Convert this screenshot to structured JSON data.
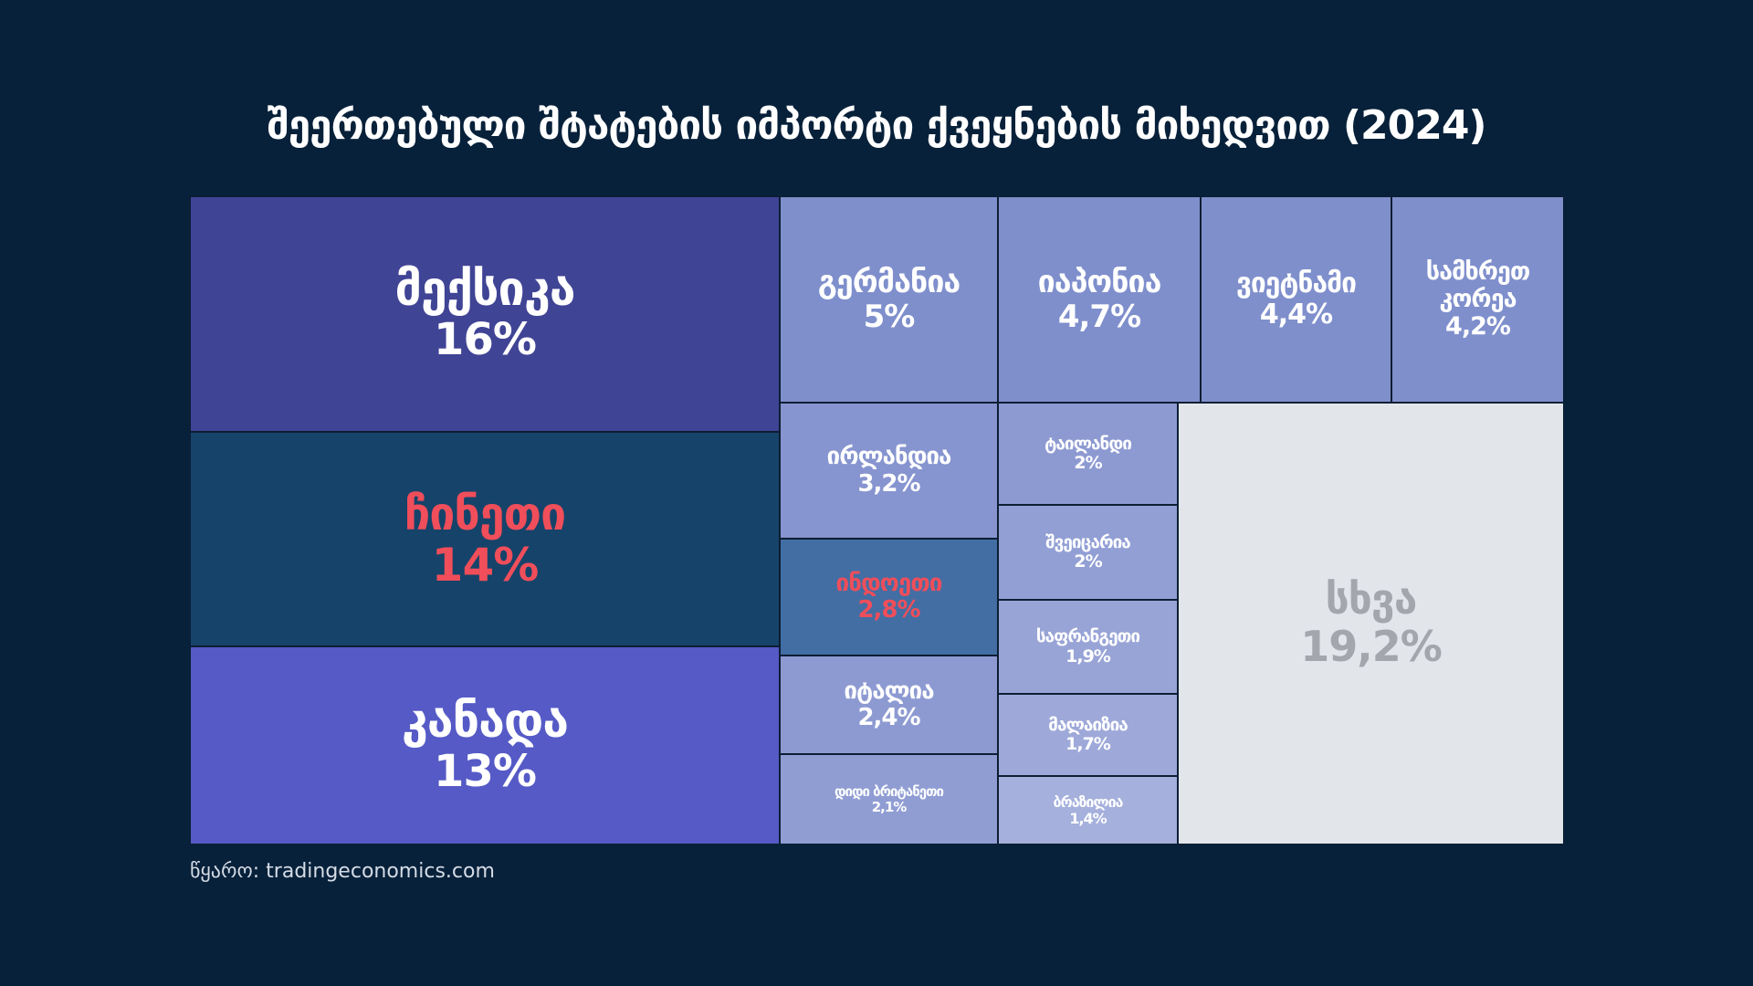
{
  "title": "შეერთებული შტატების იმპორტი ქვეყნების მიხედვით (2024)",
  "source": {
    "label": "წყარო:",
    "value": "tradingeconomics.com"
  },
  "chart_data": {
    "type": "treemap",
    "title": "შეერთებული შტატების იმპორტი ქვეყნების მიხედვით (2024)",
    "unit": "%",
    "items": [
      {
        "name": "მექსიკა",
        "value": 16,
        "value_label": "16%",
        "color": "#404495",
        "text_color": "#ffffff"
      },
      {
        "name": "ჩინეთი",
        "value": 14,
        "value_label": "14%",
        "color": "#16436a",
        "text_color": "#f04e5a"
      },
      {
        "name": "კანადა",
        "value": 13,
        "value_label": "13%",
        "color": "#555ac6",
        "text_color": "#ffffff"
      },
      {
        "name": "გერმანია",
        "value": 5,
        "value_label": "5%",
        "color": "#7f8fcc",
        "text_color": "#ffffff"
      },
      {
        "name": "იაპონია",
        "value": 4.7,
        "value_label": "4,7%",
        "color": "#7f8fcc",
        "text_color": "#ffffff"
      },
      {
        "name": "ვიეტნამი",
        "value": 4.4,
        "value_label": "4,4%",
        "color": "#7f8fcc",
        "text_color": "#ffffff"
      },
      {
        "name": "სამხრეთ კორეა",
        "value": 4.2,
        "value_label": "4,2%",
        "color": "#7f8fcc",
        "text_color": "#ffffff"
      },
      {
        "name": "ირლანდია",
        "value": 3.2,
        "value_label": "3,2%",
        "color": "#8694cf",
        "text_color": "#ffffff"
      },
      {
        "name": "ინდოეთი",
        "value": 2.8,
        "value_label": "2,8%",
        "color": "#426ea4",
        "text_color": "#f04e5a"
      },
      {
        "name": "იტალია",
        "value": 2.4,
        "value_label": "2,4%",
        "color": "#8d9ad2",
        "text_color": "#ffffff"
      },
      {
        "name": "დიდი ბრიტანეთი",
        "value": 2.1,
        "value_label": "2,1%",
        "color": "#909dd3",
        "text_color": "#ffffff"
      },
      {
        "name": "ტაილანდი",
        "value": 2,
        "value_label": "2%",
        "color": "#8d9ad2",
        "text_color": "#ffffff"
      },
      {
        "name": "შვეიცარია",
        "value": 2,
        "value_label": "2%",
        "color": "#929fd4",
        "text_color": "#ffffff"
      },
      {
        "name": "საფრანგეთი",
        "value": 1.9,
        "value_label": "1,9%",
        "color": "#98a4d6",
        "text_color": "#ffffff"
      },
      {
        "name": "მალაიზია",
        "value": 1.7,
        "value_label": "1,7%",
        "color": "#9ea9d9",
        "text_color": "#ffffff"
      },
      {
        "name": "ბრაზილია",
        "value": 1.4,
        "value_label": "1,4%",
        "color": "#a5b0dc",
        "text_color": "#ffffff"
      },
      {
        "name": "სხვა",
        "value": 19.2,
        "value_label": "19,2%",
        "color": "#e2e6eb",
        "text_color": "#a3a7ad"
      }
    ]
  }
}
